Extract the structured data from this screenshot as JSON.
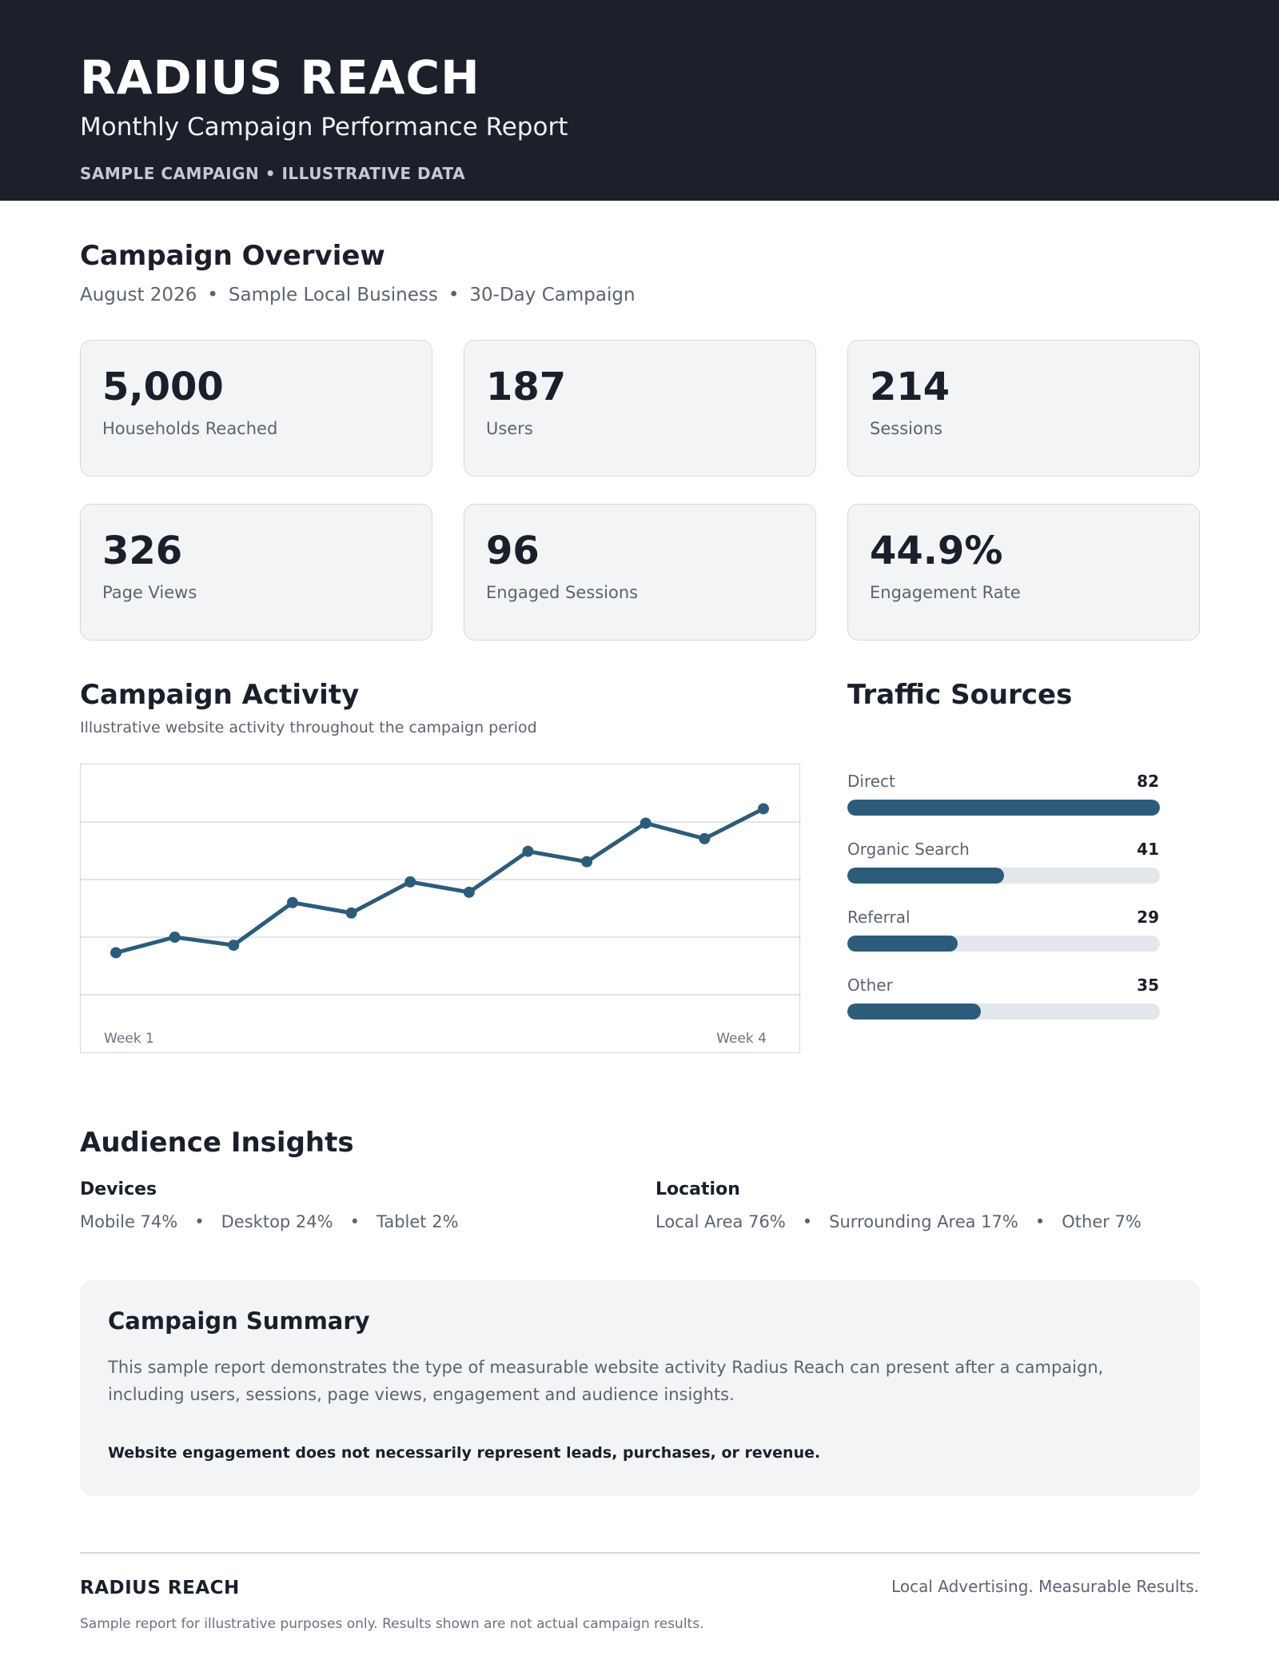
{
  "header": {
    "brand": "RADIUS REACH",
    "subtitle": "Monthly Campaign Performance Report",
    "tagline": "SAMPLE CAMPAIGN • ILLUSTRATIVE DATA"
  },
  "overview": {
    "title": "Campaign Overview",
    "period": "August 2026",
    "business": "Sample Local Business",
    "duration": "30-Day Campaign",
    "separator": "•"
  },
  "kpis": [
    {
      "value": "5,000",
      "label": "Households Reached"
    },
    {
      "value": "187",
      "label": "Users"
    },
    {
      "value": "214",
      "label": "Sessions"
    },
    {
      "value": "326",
      "label": "Page Views"
    },
    {
      "value": "96",
      "label": "Engaged Sessions"
    },
    {
      "value": "44.9%",
      "label": "Engagement Rate"
    }
  ],
  "activity": {
    "title": "Campaign Activity",
    "description": "Illustrative website activity throughout the campaign period",
    "start_label": "Week 1",
    "end_label": "Week 4"
  },
  "chart_data": {
    "type": "line",
    "title": "Campaign Activity",
    "x_tick_labels": [
      "Week 1",
      "Week 4"
    ],
    "ylim": [
      0,
      4
    ],
    "grid": true,
    "series": [
      {
        "values": [
          0.73,
          1.0,
          0.86,
          1.6,
          1.42,
          1.96,
          1.78,
          2.49,
          2.31,
          2.98,
          2.71,
          3.23
        ]
      }
    ],
    "color": "#2c5c7a"
  },
  "traffic": {
    "title": "Traffic Sources",
    "max": 82,
    "sources": [
      {
        "label": "Direct",
        "value": 82
      },
      {
        "label": "Organic Search",
        "value": 41
      },
      {
        "label": "Referral",
        "value": 29
      },
      {
        "label": "Other",
        "value": 35
      }
    ]
  },
  "audience": {
    "title": "Audience Insights",
    "devices_title": "Devices",
    "devices": [
      "Mobile 74%",
      "Desktop 24%",
      "Tablet 2%"
    ],
    "location_title": "Location",
    "location": [
      "Local Area 76%",
      "Surrounding Area 17%",
      "Other 7%"
    ],
    "separator": "•"
  },
  "summary": {
    "title": "Campaign Summary",
    "body": "This sample report demonstrates the type of measurable website activity Radius Reach can present after a campaign, including users, sessions, page views, engagement and audience insights.",
    "note": "Website engagement does not necessarily represent leads, purchases, or revenue."
  },
  "footer": {
    "brand": "RADIUS REACH",
    "tagline": "Local Advertising. Measurable Results.",
    "disclaimer": "Sample report for illustrative purposes only. Results shown are not actual campaign results."
  },
  "colors": {
    "header_bg": "#1b202b",
    "accent": "#2c5c7a",
    "card_bg": "#f3f4f6",
    "track": "#e4e7eb"
  }
}
